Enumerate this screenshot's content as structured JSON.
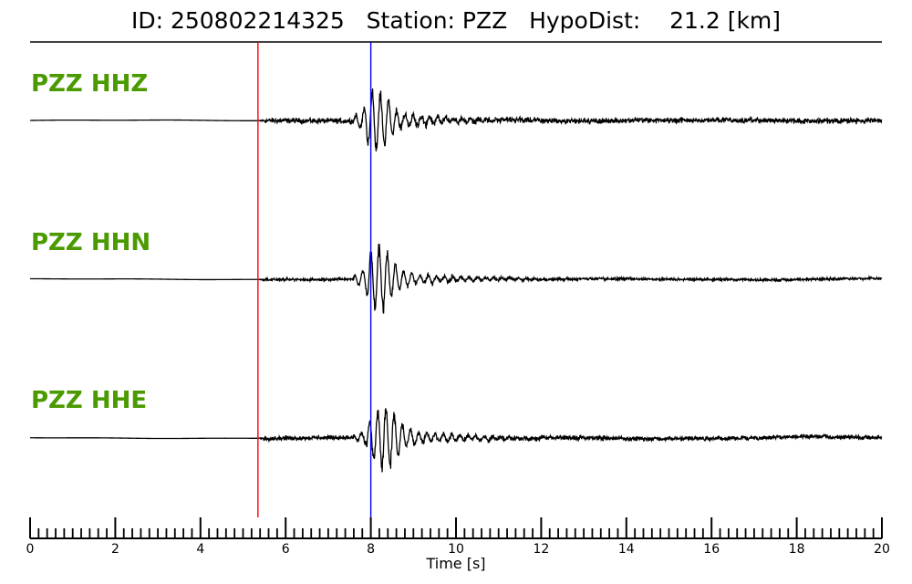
{
  "title": "ID: 250802214325   Station: PZZ   HypoDist:    21.2 [km]",
  "chart_data": {
    "type": "line",
    "title": "ID: 250802214325   Station: PZZ   HypoDist:    21.2 [km]",
    "xlabel": "Time [s]",
    "ylabel": "",
    "xlim": [
      0,
      20
    ],
    "x_major_ticks": [
      0,
      2,
      4,
      6,
      8,
      10,
      12,
      14,
      16,
      18,
      20
    ],
    "x_minor_step": 0.2,
    "grid": false,
    "legend": "none",
    "label_color": "#4a9a00",
    "trace_color": "#000000",
    "markers": [
      {
        "name": "P-pick",
        "time": 5.35,
        "color": "#ff0000"
      },
      {
        "name": "S-pick",
        "time": 8.0,
        "color": "#0000ff"
      }
    ],
    "series": [
      {
        "name": "PZZ HHZ",
        "noise_level": 0.1,
        "peak_time": 8.15,
        "peak_amp": 1.0
      },
      {
        "name": "PZZ HHN",
        "noise_level": 0.05,
        "peak_time": 8.2,
        "peak_amp": 1.05
      },
      {
        "name": "PZZ HHE",
        "noise_level": 0.08,
        "peak_time": 8.35,
        "peak_amp": 1.05
      }
    ]
  }
}
